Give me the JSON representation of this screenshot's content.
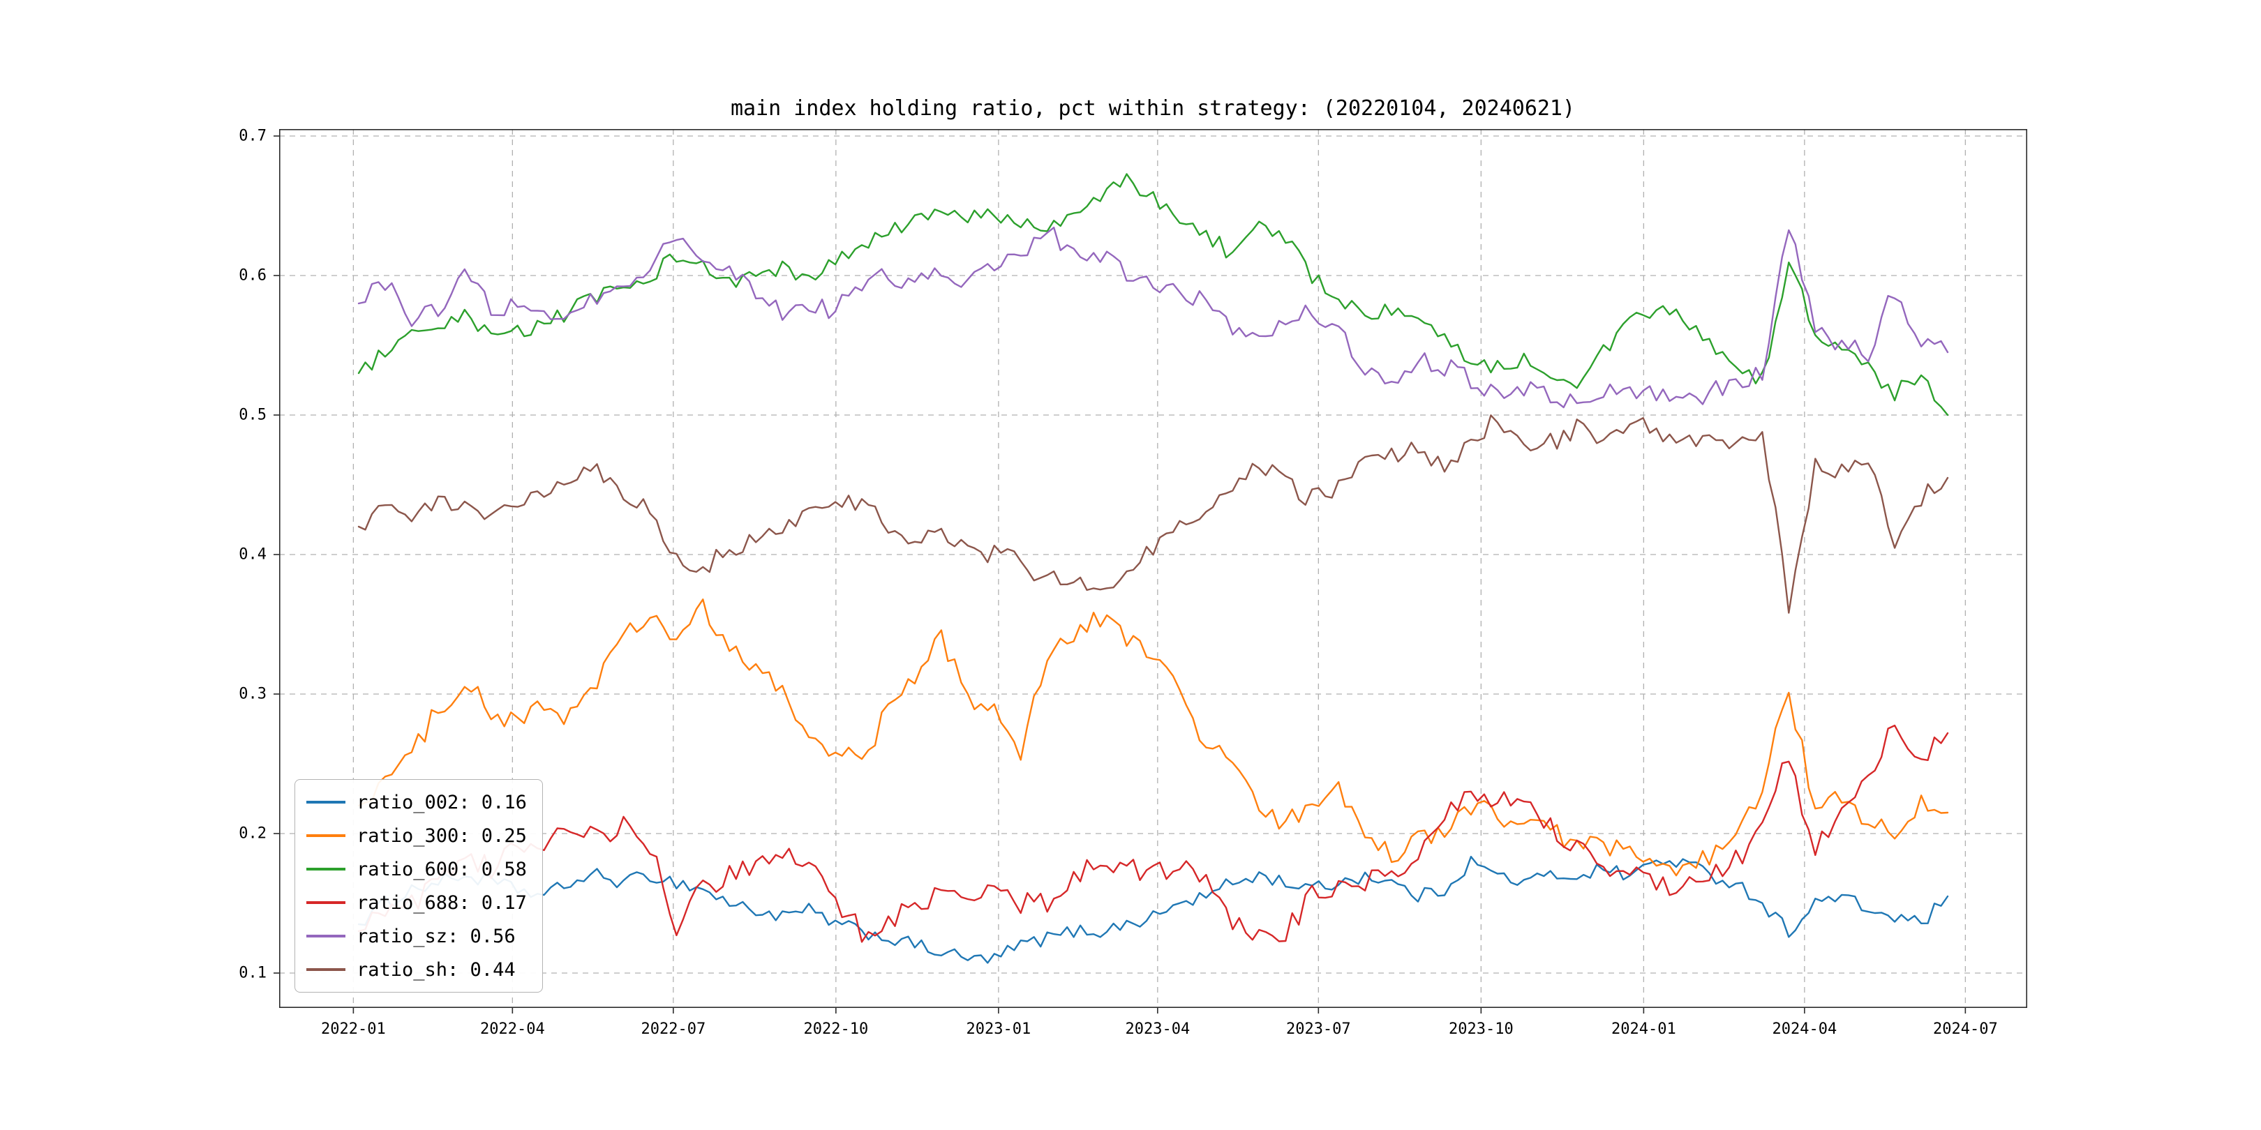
{
  "figure": {
    "title": "main index holding ratio, pct within strategy: (20220104, 20240621)"
  },
  "chart_data": {
    "type": "line",
    "title": "main index holding ratio, pct within strategy: (20220104, 20240621)",
    "x_start": "2022-01-04",
    "x_end": "2024-06-21",
    "xlim": [
      "2021-11-20",
      "2024-08-05"
    ],
    "ylim": [
      0.075,
      0.705
    ],
    "x_ticks": [
      "2022-01",
      "2022-04",
      "2022-07",
      "2022-10",
      "2023-01",
      "2023-04",
      "2023-07",
      "2023-10",
      "2024-01",
      "2024-04",
      "2024-07"
    ],
    "y_ticks": [
      0.1,
      0.2,
      0.3,
      0.4,
      0.5,
      0.6,
      0.7
    ],
    "grid": "dashed",
    "legend_position": "lower left",
    "series": [
      {
        "name": "ratio_002",
        "legend_label": "ratio_002: 0.16",
        "color": "#1f77b4",
        "values": [
          0.135,
          0.15,
          0.16,
          0.165,
          0.17,
          0.165,
          0.16,
          0.155,
          0.165,
          0.17,
          0.165,
          0.17,
          0.165,
          0.16,
          0.15,
          0.145,
          0.14,
          0.145,
          0.135,
          0.13,
          0.125,
          0.12,
          0.115,
          0.11,
          0.11,
          0.12,
          0.125,
          0.13,
          0.13,
          0.135,
          0.14,
          0.15,
          0.155,
          0.165,
          0.17,
          0.165,
          0.16,
          0.165,
          0.17,
          0.165,
          0.155,
          0.16,
          0.18,
          0.17,
          0.165,
          0.17,
          0.17,
          0.175,
          0.17,
          0.18,
          0.18,
          0.17,
          0.165,
          0.15,
          0.13,
          0.15,
          0.155,
          0.145,
          0.14,
          0.135,
          0.155
        ]
      },
      {
        "name": "ratio_300",
        "legend_label": "ratio_300: 0.25",
        "color": "#ff7f0e",
        "values": [
          0.22,
          0.24,
          0.255,
          0.29,
          0.31,
          0.285,
          0.28,
          0.29,
          0.285,
          0.31,
          0.34,
          0.355,
          0.34,
          0.36,
          0.33,
          0.32,
          0.3,
          0.27,
          0.26,
          0.25,
          0.29,
          0.31,
          0.34,
          0.3,
          0.285,
          0.26,
          0.33,
          0.34,
          0.355,
          0.34,
          0.33,
          0.3,
          0.26,
          0.255,
          0.215,
          0.205,
          0.225,
          0.23,
          0.195,
          0.185,
          0.195,
          0.2,
          0.22,
          0.215,
          0.205,
          0.2,
          0.195,
          0.19,
          0.185,
          0.175,
          0.17,
          0.185,
          0.195,
          0.23,
          0.305,
          0.215,
          0.225,
          0.21,
          0.195,
          0.22,
          0.215
        ]
      },
      {
        "name": "ratio_600",
        "legend_label": "ratio_600: 0.58",
        "color": "#2ca02c",
        "values": [
          0.53,
          0.545,
          0.555,
          0.56,
          0.57,
          0.555,
          0.56,
          0.565,
          0.575,
          0.585,
          0.59,
          0.6,
          0.615,
          0.605,
          0.595,
          0.6,
          0.605,
          0.595,
          0.61,
          0.62,
          0.63,
          0.64,
          0.645,
          0.64,
          0.645,
          0.64,
          0.63,
          0.645,
          0.655,
          0.67,
          0.655,
          0.64,
          0.63,
          0.615,
          0.635,
          0.625,
          0.6,
          0.585,
          0.57,
          0.575,
          0.565,
          0.555,
          0.54,
          0.535,
          0.54,
          0.53,
          0.525,
          0.545,
          0.565,
          0.575,
          0.57,
          0.55,
          0.535,
          0.525,
          0.61,
          0.56,
          0.545,
          0.535,
          0.515,
          0.53,
          0.5
        ]
      },
      {
        "name": "ratio_688",
        "legend_label": "ratio_688: 0.17",
        "color": "#d62728",
        "values": [
          0.13,
          0.145,
          0.15,
          0.165,
          0.185,
          0.175,
          0.19,
          0.195,
          0.205,
          0.195,
          0.205,
          0.19,
          0.135,
          0.16,
          0.17,
          0.18,
          0.185,
          0.18,
          0.15,
          0.13,
          0.135,
          0.15,
          0.155,
          0.15,
          0.16,
          0.15,
          0.15,
          0.165,
          0.185,
          0.175,
          0.17,
          0.18,
          0.17,
          0.135,
          0.125,
          0.13,
          0.155,
          0.16,
          0.165,
          0.17,
          0.185,
          0.215,
          0.23,
          0.225,
          0.23,
          0.205,
          0.19,
          0.18,
          0.17,
          0.165,
          0.16,
          0.17,
          0.18,
          0.205,
          0.255,
          0.185,
          0.22,
          0.235,
          0.28,
          0.25,
          0.272
        ]
      },
      {
        "name": "ratio_sz",
        "legend_label": "ratio_sz: 0.56",
        "color": "#9467bd",
        "values": [
          0.58,
          0.595,
          0.57,
          0.575,
          0.605,
          0.575,
          0.58,
          0.57,
          0.575,
          0.585,
          0.59,
          0.605,
          0.63,
          0.61,
          0.6,
          0.59,
          0.575,
          0.58,
          0.575,
          0.595,
          0.6,
          0.595,
          0.6,
          0.595,
          0.605,
          0.615,
          0.63,
          0.62,
          0.615,
          0.6,
          0.595,
          0.59,
          0.58,
          0.56,
          0.555,
          0.57,
          0.575,
          0.56,
          0.53,
          0.525,
          0.54,
          0.535,
          0.525,
          0.515,
          0.52,
          0.515,
          0.51,
          0.515,
          0.52,
          0.515,
          0.51,
          0.515,
          0.525,
          0.53,
          0.638,
          0.56,
          0.55,
          0.545,
          0.59,
          0.55,
          0.545
        ]
      },
      {
        "name": "ratio_sh",
        "legend_label": "ratio_sh: 0.44",
        "color": "#8c564b",
        "values": [
          0.42,
          0.435,
          0.43,
          0.44,
          0.435,
          0.425,
          0.44,
          0.445,
          0.455,
          0.46,
          0.445,
          0.43,
          0.4,
          0.39,
          0.405,
          0.41,
          0.42,
          0.43,
          0.435,
          0.44,
          0.42,
          0.41,
          0.415,
          0.405,
          0.4,
          0.395,
          0.38,
          0.385,
          0.375,
          0.39,
          0.405,
          0.42,
          0.43,
          0.445,
          0.465,
          0.45,
          0.44,
          0.45,
          0.465,
          0.47,
          0.475,
          0.465,
          0.48,
          0.5,
          0.475,
          0.48,
          0.49,
          0.48,
          0.495,
          0.49,
          0.48,
          0.485,
          0.48,
          0.49,
          0.365,
          0.465,
          0.46,
          0.465,
          0.41,
          0.44,
          0.455
        ]
      }
    ]
  }
}
